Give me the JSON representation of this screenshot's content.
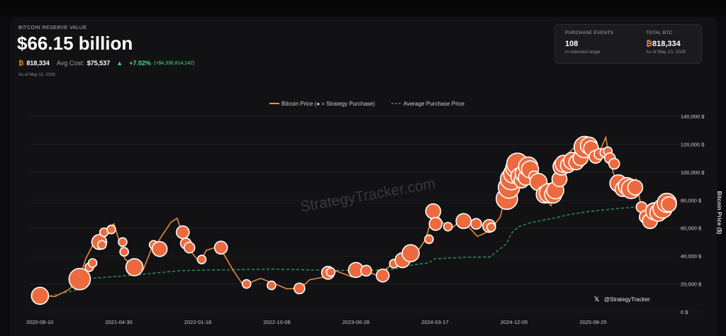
{
  "header": {
    "eyebrow": "BITCOIN RESERVE VALUE",
    "value": "$66.15 billion",
    "btc_symbol": "₿",
    "btc_amount": "818,334",
    "avg_cost_label": "Avg Cost:",
    "avg_cost": "$75,537",
    "change_arrow": "▲",
    "change_pct": "+7.02%",
    "change_abs": "(+$4,336,814,142)",
    "as_of": "As of May 10, 2026"
  },
  "stats": {
    "events_label": "PURCHASE EVENTS",
    "events_value": "108",
    "events_sub": "in selected range",
    "btc_label": "TOTAL BTC",
    "btc_symbol": "₿",
    "btc_value": "818,334",
    "btc_sub": "As of May 10, 2026"
  },
  "watermark": "StrategyTracker.com",
  "credit": "@StrategyTracker",
  "colors": {
    "price": "#f0913a",
    "bubble": "#ec6a3e",
    "avg": "#2e9a5c",
    "positive": "#4ade80",
    "btc": "#f7931a"
  },
  "chart_data": {
    "type": "line",
    "legend": [
      "Bitcoin Price (● = Strategy Purchase)",
      "Average Purchase Price"
    ],
    "legend_position": "top-center",
    "ylabel": "Bitcoin Price ($)",
    "ylim": [
      0,
      140000
    ],
    "yticks": [
      0,
      20000,
      40000,
      60000,
      80000,
      100000,
      120000,
      140000
    ],
    "ytick_labels": [
      "0 $",
      "20,000 $",
      "40,000 $",
      "60,000 $",
      "80,000 $",
      "100,000 $",
      "120,000 $",
      "140,000 $"
    ],
    "xticks": [
      "2020-08-10",
      "2021-04-30",
      "2022-01-18",
      "2022-10-08",
      "2023-06-28",
      "2024-03-17",
      "2024-12-05",
      "2025-08-25"
    ],
    "grid": true,
    "series": [
      {
        "name": "Bitcoin Price",
        "points": [
          [
            "2020-08-10",
            11500
          ],
          [
            "2020-10-01",
            11000
          ],
          [
            "2020-11-15",
            16000
          ],
          [
            "2020-12-20",
            24000
          ],
          [
            "2021-01-10",
            38000
          ],
          [
            "2021-02-20",
            55000
          ],
          [
            "2021-03-15",
            58000
          ],
          [
            "2021-04-14",
            63000
          ],
          [
            "2021-05-20",
            38000
          ],
          [
            "2021-06-22",
            32000
          ],
          [
            "2021-07-20",
            30000
          ],
          [
            "2021-08-20",
            47000
          ],
          [
            "2021-09-07",
            50000
          ],
          [
            "2021-10-20",
            64000
          ],
          [
            "2021-11-10",
            67000
          ],
          [
            "2021-12-10",
            48000
          ],
          [
            "2022-01-24",
            35000
          ],
          [
            "2022-02-15",
            44000
          ],
          [
            "2022-03-30",
            47000
          ],
          [
            "2022-05-15",
            30000
          ],
          [
            "2022-06-18",
            19000
          ],
          [
            "2022-08-15",
            24000
          ],
          [
            "2022-10-08",
            19500
          ],
          [
            "2022-11-10",
            16500
          ],
          [
            "2022-12-25",
            16800
          ],
          [
            "2023-01-25",
            23000
          ],
          [
            "2023-03-15",
            25000
          ],
          [
            "2023-04-15",
            30000
          ],
          [
            "2023-06-15",
            25000
          ],
          [
            "2023-07-15",
            30500
          ],
          [
            "2023-09-10",
            25800
          ],
          [
            "2023-10-25",
            34000
          ],
          [
            "2023-12-10",
            43000
          ],
          [
            "2024-01-15",
            42000
          ],
          [
            "2024-02-15",
            52000
          ],
          [
            "2024-03-14",
            73000
          ],
          [
            "2024-05-01",
            58000
          ],
          [
            "2024-06-15",
            66000
          ],
          [
            "2024-08-05",
            54000
          ],
          [
            "2024-09-15",
            58000
          ],
          [
            "2024-10-20",
            68000
          ],
          [
            "2024-11-20",
            95000
          ],
          [
            "2024-12-17",
            106000
          ],
          [
            "2025-01-20",
            104000
          ],
          [
            "2025-02-25",
            86000
          ],
          [
            "2025-04-07",
            76000
          ],
          [
            "2025-05-22",
            111000
          ],
          [
            "2025-07-14",
            122000
          ],
          [
            "2025-08-14",
            123000
          ],
          [
            "2025-09-10",
            112000
          ],
          [
            "2025-10-06",
            125000
          ],
          [
            "2025-10-20",
            108000
          ],
          [
            "2025-11-21",
            84000
          ],
          [
            "2025-12-20",
            88000
          ],
          [
            "2026-01-15",
            95000
          ],
          [
            "2026-02-05",
            70000
          ],
          [
            "2026-03-01",
            65000
          ],
          [
            "2026-04-10",
            72000
          ],
          [
            "2026-05-10",
            80000
          ]
        ]
      },
      {
        "name": "Average Purchase Price",
        "points": [
          [
            "2020-08-10",
            11500
          ],
          [
            "2020-09-10",
            11300
          ],
          [
            "2020-12-20",
            16000
          ],
          [
            "2021-01-20",
            24000
          ],
          [
            "2021-03-01",
            24500
          ],
          [
            "2021-06-25",
            26500
          ],
          [
            "2021-11-20",
            29500
          ],
          [
            "2022-03-01",
            30000
          ],
          [
            "2022-09-20",
            30600
          ],
          [
            "2023-01-01",
            30200
          ],
          [
            "2023-04-05",
            29800
          ],
          [
            "2023-08-01",
            29600
          ],
          [
            "2023-11-01",
            30500
          ],
          [
            "2024-01-01",
            33500
          ],
          [
            "2024-02-26",
            35200
          ],
          [
            "2024-03-15",
            38000
          ],
          [
            "2024-06-20",
            39000
          ],
          [
            "2024-09-15",
            39200
          ],
          [
            "2024-11-11",
            49000
          ],
          [
            "2024-11-25",
            56000
          ],
          [
            "2024-12-20",
            61000
          ],
          [
            "2025-02-01",
            64000
          ],
          [
            "2025-04-15",
            67000
          ],
          [
            "2025-06-15",
            70000
          ],
          [
            "2025-08-15",
            72000
          ],
          [
            "2025-11-15",
            74000
          ],
          [
            "2026-01-15",
            75000
          ],
          [
            "2026-05-10",
            75537
          ]
        ]
      }
    ],
    "purchases": [
      {
        "date": "2020-08-11",
        "price": 11500,
        "size": 6
      },
      {
        "date": "2020-12-21",
        "price": 23500,
        "size": 8
      },
      {
        "date": "2021-01-22",
        "price": 32000,
        "size": 2
      },
      {
        "date": "2021-02-02",
        "price": 35000,
        "size": 2
      },
      {
        "date": "2021-02-24",
        "price": 50000,
        "size": 5
      },
      {
        "date": "2021-03-05",
        "price": 48000,
        "size": 2
      },
      {
        "date": "2021-03-12",
        "price": 57000,
        "size": 2
      },
      {
        "date": "2021-04-05",
        "price": 59000,
        "size": 2
      },
      {
        "date": "2021-05-13",
        "price": 50000,
        "size": 2
      },
      {
        "date": "2021-05-18",
        "price": 43000,
        "size": 2
      },
      {
        "date": "2021-06-21",
        "price": 32000,
        "size": 6
      },
      {
        "date": "2021-08-24",
        "price": 48000,
        "size": 2
      },
      {
        "date": "2021-09-13",
        "price": 45000,
        "size": 5
      },
      {
        "date": "2021-11-29",
        "price": 57000,
        "size": 4
      },
      {
        "date": "2021-12-09",
        "price": 49000,
        "size": 3
      },
      {
        "date": "2021-12-21",
        "price": 46000,
        "size": 3
      },
      {
        "date": "2022-01-31",
        "price": 37500,
        "size": 2
      },
      {
        "date": "2022-04-05",
        "price": 46000,
        "size": 4
      },
      {
        "date": "2022-06-29",
        "price": 20000,
        "size": 2
      },
      {
        "date": "2022-09-20",
        "price": 19000,
        "size": 2
      },
      {
        "date": "2022-12-22",
        "price": 16800,
        "size": 3
      },
      {
        "date": "2023-03-27",
        "price": 28000,
        "size": 4
      },
      {
        "date": "2023-04-05",
        "price": 28500,
        "size": 2
      },
      {
        "date": "2023-06-28",
        "price": 30000,
        "size": 5
      },
      {
        "date": "2023-08-01",
        "price": 29500,
        "size": 3
      },
      {
        "date": "2023-09-25",
        "price": 26000,
        "size": 4
      },
      {
        "date": "2023-11-01",
        "price": 34500,
        "size": 2
      },
      {
        "date": "2023-11-30",
        "price": 37000,
        "size": 5
      },
      {
        "date": "2023-12-27",
        "price": 42000,
        "size": 6
      },
      {
        "date": "2024-02-26",
        "price": 52000,
        "size": 2
      },
      {
        "date": "2024-03-11",
        "price": 72000,
        "size": 5
      },
      {
        "date": "2024-03-19",
        "price": 63000,
        "size": 4
      },
      {
        "date": "2024-04-29",
        "price": 61000,
        "size": 2
      },
      {
        "date": "2024-06-20",
        "price": 65000,
        "size": 5
      },
      {
        "date": "2024-08-01",
        "price": 63000,
        "size": 3
      },
      {
        "date": "2024-09-13",
        "price": 61500,
        "size": 4
      },
      {
        "date": "2024-09-20",
        "price": 60500,
        "size": 2
      },
      {
        "date": "2024-11-11",
        "price": 81000,
        "size": 8
      },
      {
        "date": "2024-11-18",
        "price": 89000,
        "size": 8
      },
      {
        "date": "2024-11-25",
        "price": 95000,
        "size": 8
      },
      {
        "date": "2024-12-02",
        "price": 99000,
        "size": 7
      },
      {
        "date": "2024-12-09",
        "price": 103000,
        "size": 7
      },
      {
        "date": "2024-12-16",
        "price": 106000,
        "size": 8
      },
      {
        "date": "2024-12-23",
        "price": 97000,
        "size": 6
      },
      {
        "date": "2024-12-30",
        "price": 94000,
        "size": 5
      },
      {
        "date": "2025-01-06",
        "price": 99000,
        "size": 6
      },
      {
        "date": "2025-01-13",
        "price": 96000,
        "size": 5
      },
      {
        "date": "2025-01-21",
        "price": 104000,
        "size": 7
      },
      {
        "date": "2025-01-27",
        "price": 102000,
        "size": 6
      },
      {
        "date": "2025-02-10",
        "price": 97000,
        "size": 3
      },
      {
        "date": "2025-02-24",
        "price": 93000,
        "size": 6
      },
      {
        "date": "2025-03-17",
        "price": 84000,
        "size": 6
      },
      {
        "date": "2025-03-31",
        "price": 85000,
        "size": 7
      },
      {
        "date": "2025-04-14",
        "price": 84000,
        "size": 6
      },
      {
        "date": "2025-04-21",
        "price": 87000,
        "size": 6
      },
      {
        "date": "2025-05-05",
        "price": 95000,
        "size": 5
      },
      {
        "date": "2025-05-12",
        "price": 104000,
        "size": 6
      },
      {
        "date": "2025-05-19",
        "price": 106000,
        "size": 6
      },
      {
        "date": "2025-06-02",
        "price": 105000,
        "size": 5
      },
      {
        "date": "2025-06-16",
        "price": 108000,
        "size": 6
      },
      {
        "date": "2025-06-30",
        "price": 107000,
        "size": 5
      },
      {
        "date": "2025-07-14",
        "price": 110000,
        "size": 5
      },
      {
        "date": "2025-07-28",
        "price": 118000,
        "size": 8
      },
      {
        "date": "2025-08-11",
        "price": 119000,
        "size": 6
      },
      {
        "date": "2025-08-18",
        "price": 117000,
        "size": 5
      },
      {
        "date": "2025-09-02",
        "price": 111000,
        "size": 4
      },
      {
        "date": "2025-09-15",
        "price": 113000,
        "size": 3
      },
      {
        "date": "2025-10-01",
        "price": 114000,
        "size": 2
      },
      {
        "date": "2025-10-13",
        "price": 115000,
        "size": 2
      },
      {
        "date": "2025-10-20",
        "price": 110000,
        "size": 3
      },
      {
        "date": "2025-11-03",
        "price": 106000,
        "size": 3
      },
      {
        "date": "2025-11-17",
        "price": 92000,
        "size": 6
      },
      {
        "date": "2025-12-01",
        "price": 88000,
        "size": 5
      },
      {
        "date": "2025-12-15",
        "price": 90000,
        "size": 6
      },
      {
        "date": "2025-12-29",
        "price": 88000,
        "size": 7
      },
      {
        "date": "2026-01-12",
        "price": 89000,
        "size": 5
      },
      {
        "date": "2026-02-02",
        "price": 75000,
        "size": 3
      },
      {
        "date": "2026-02-16",
        "price": 68000,
        "size": 4
      },
      {
        "date": "2026-03-02",
        "price": 65000,
        "size": 5
      },
      {
        "date": "2026-03-16",
        "price": 72000,
        "size": 6
      },
      {
        "date": "2026-03-30",
        "price": 71000,
        "size": 6
      },
      {
        "date": "2026-04-13",
        "price": 74000,
        "size": 7
      },
      {
        "date": "2026-04-27",
        "price": 78000,
        "size": 7
      },
      {
        "date": "2026-05-04",
        "price": 77000,
        "size": 5
      }
    ]
  }
}
